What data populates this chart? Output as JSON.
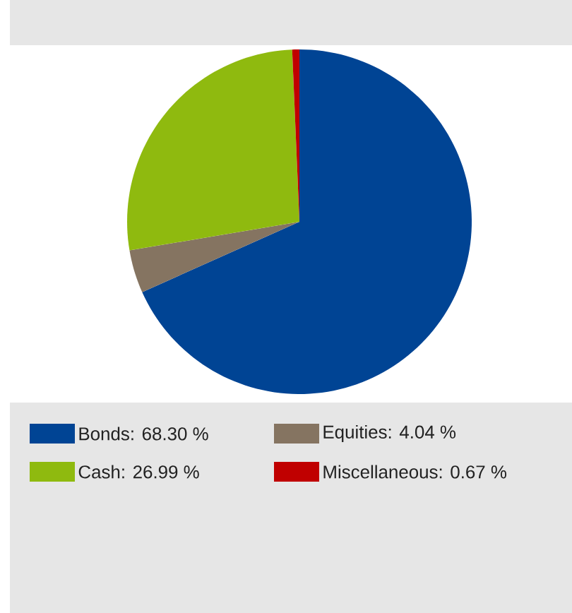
{
  "chart_data": {
    "type": "pie",
    "categories": [
      "Bonds: 68.30 %",
      "Equities: 4.04 %",
      "Cash: 26.99 %",
      "Miscellaneous: 0.67 %"
    ],
    "values": [
      68.3,
      4.04,
      26.99,
      0.67
    ],
    "colors": [
      "#004494",
      "#857461",
      "#8fba0f",
      "#c00000"
    ],
    "legend": "bottom"
  }
}
